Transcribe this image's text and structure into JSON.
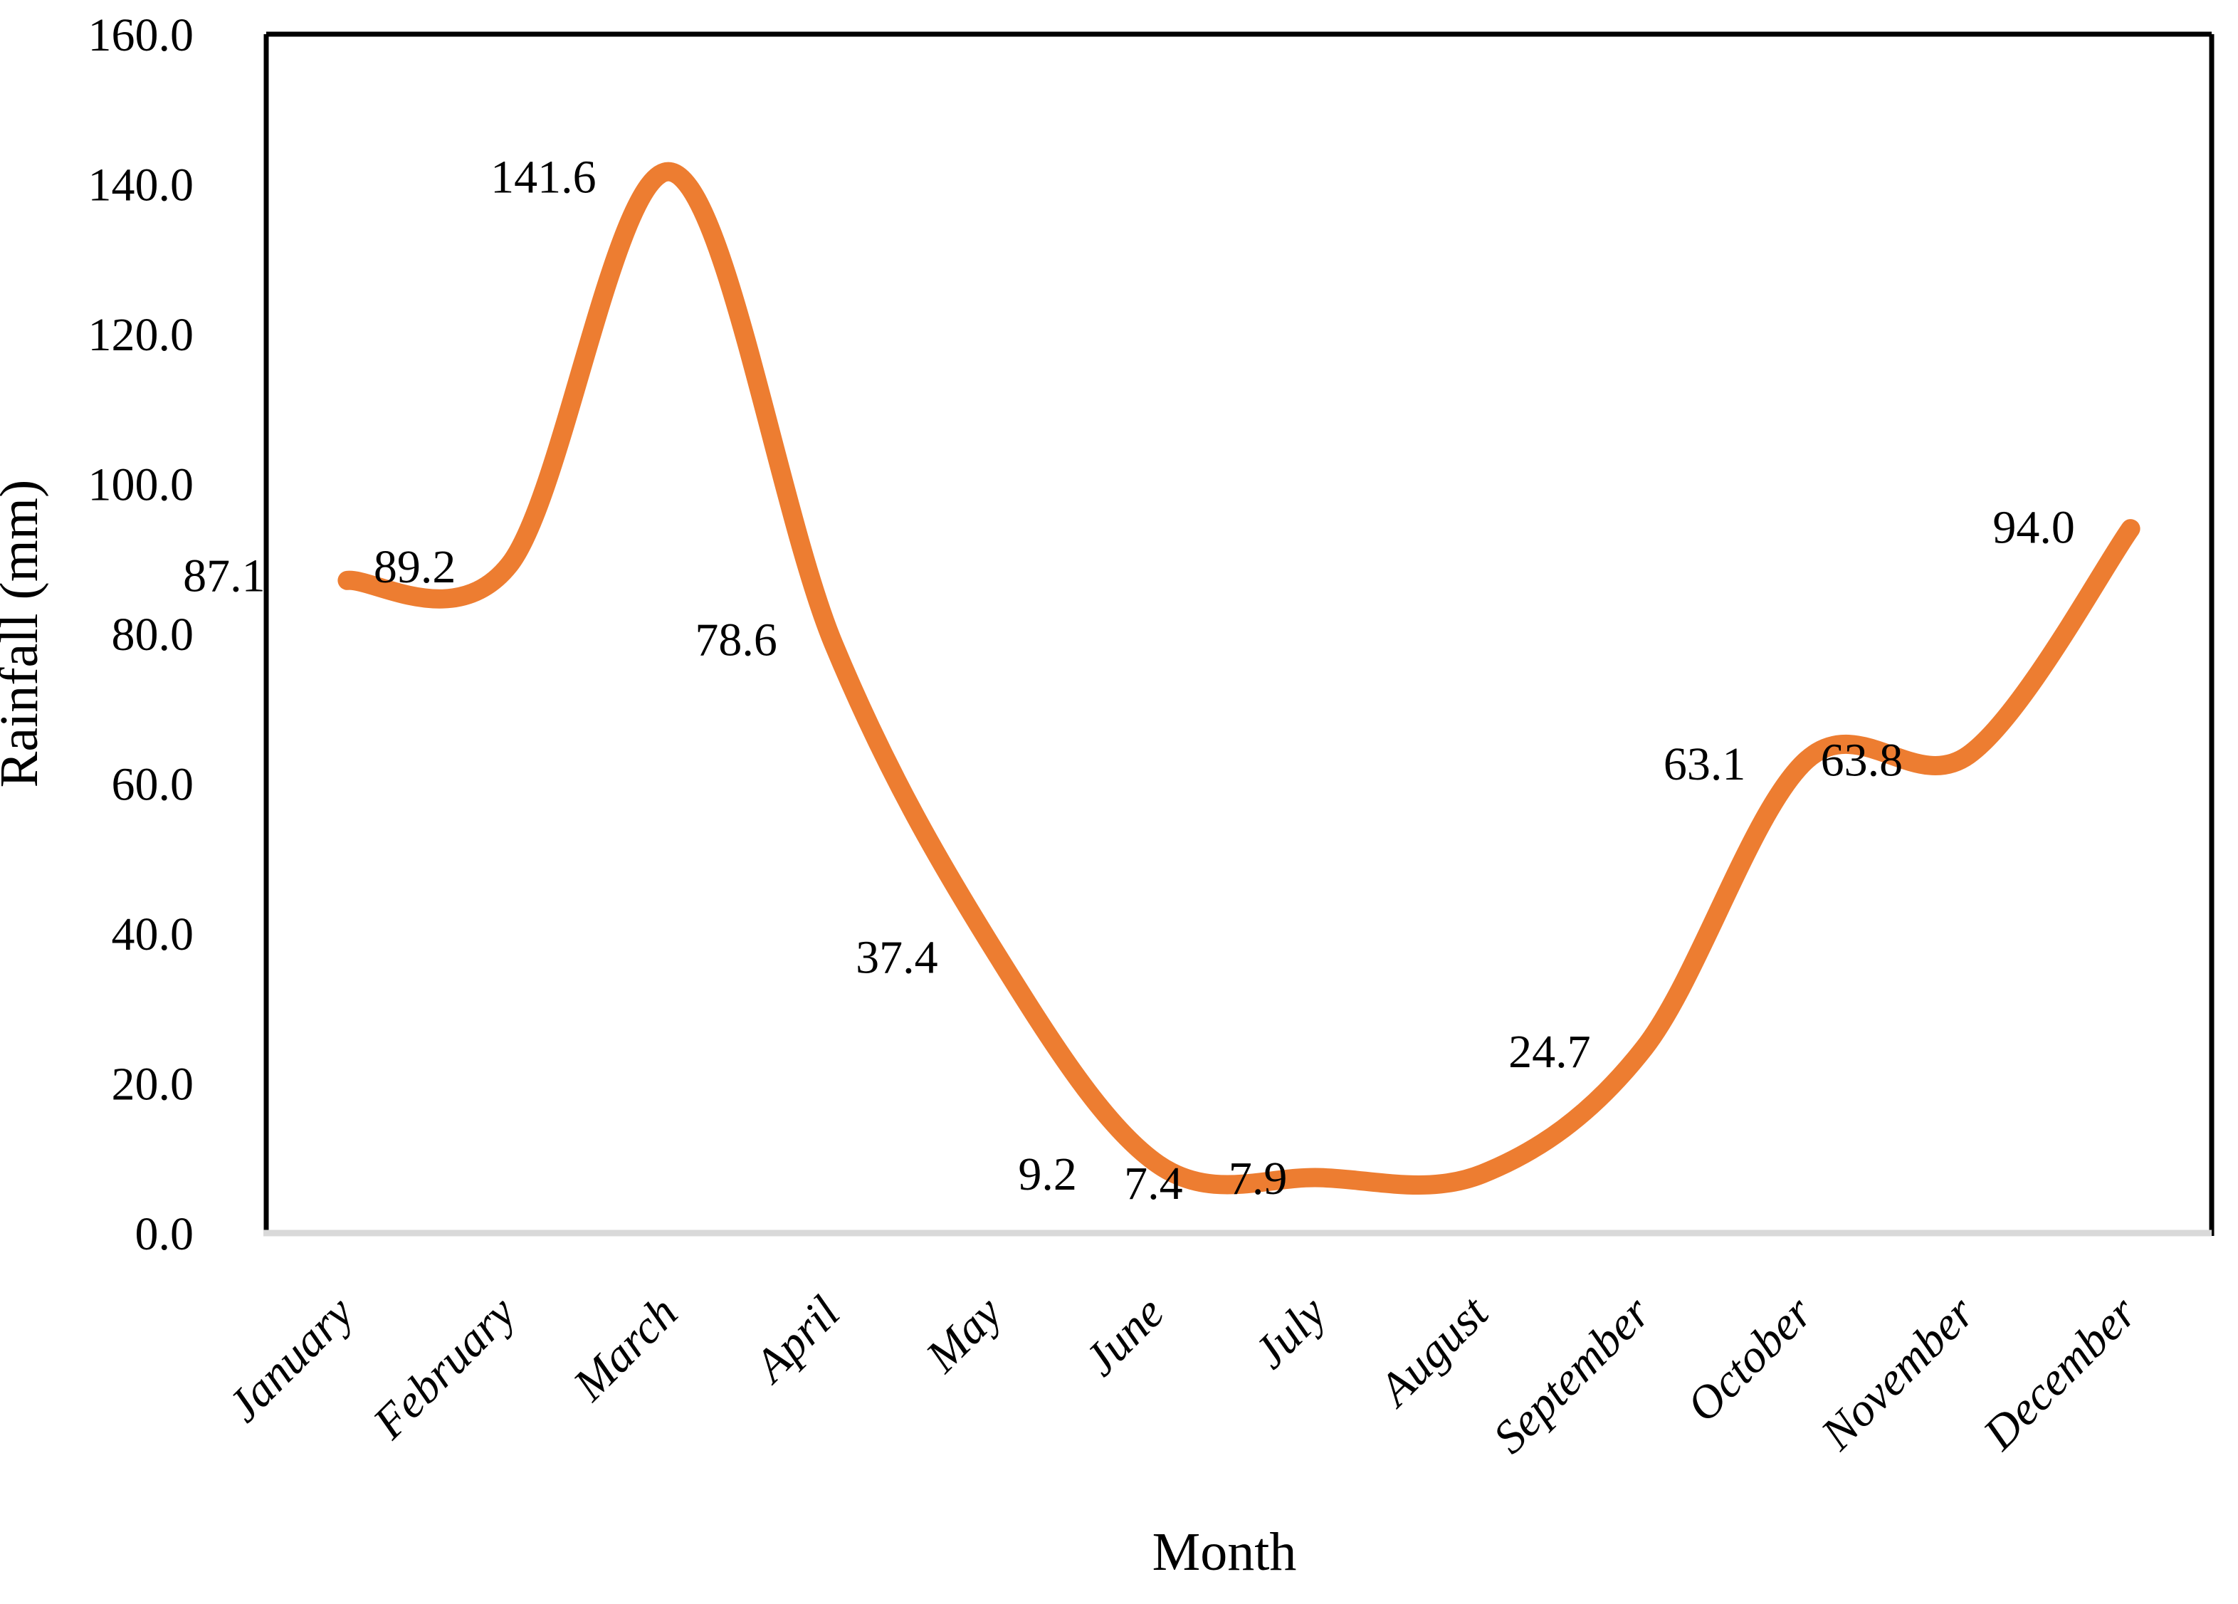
{
  "chart_data": {
    "type": "line",
    "title": "",
    "categories": [
      "January",
      "February",
      "March",
      "April",
      "May",
      "June",
      "July",
      "August",
      "September",
      "October",
      "November",
      "December"
    ],
    "series": [
      {
        "name": "Rainfall",
        "color": "#ED7D31",
        "values": [
          87.1,
          89.2,
          141.6,
          78.6,
          37.4,
          9.2,
          7.4,
          7.9,
          24.7,
          63.1,
          63.8,
          94.0
        ],
        "data_labels": [
          "87.1",
          "89.2",
          "141.6",
          "78.6",
          "37.4",
          "9.2",
          "7.4",
          "7.9",
          "24.7",
          "63.1",
          "63.8",
          "94.0"
        ]
      }
    ],
    "xlabel": "Month",
    "ylabel": "Rainfall (mm)",
    "ylim": [
      0,
      160
    ],
    "ytick_step": 20,
    "ytick_labels": [
      "160.0",
      "140.0",
      "120.0",
      "100.0",
      "80.0",
      "60.0",
      "40.0",
      "20.0",
      "0.0"
    ],
    "x_tick_rotation_deg": -45,
    "grid": false,
    "legend": "none",
    "smooth": true,
    "colors": {
      "line": "#ED7D31",
      "plot_border": "#000000",
      "x_axis_line": "#D9D9D9",
      "text": "#000000",
      "background": "#FFFFFF"
    }
  }
}
